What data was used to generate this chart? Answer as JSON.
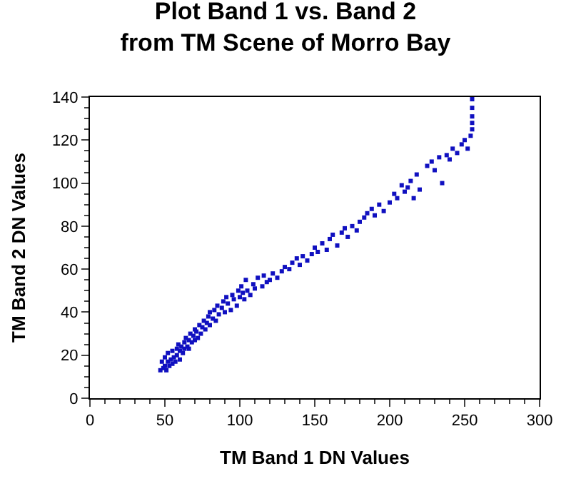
{
  "chart_data": {
    "type": "scatter",
    "title": "Plot Band 1 vs. Band 2\nfrom TM Scene of Morro Bay",
    "xlabel": "TM Band 1 DN Values",
    "ylabel": "TM Band 2 DN Values",
    "xlim": [
      0,
      300
    ],
    "xticks": [
      0,
      50,
      100,
      150,
      200,
      250,
      300
    ],
    "ylim": [
      0,
      140
    ],
    "yticks": [
      0,
      20,
      40,
      60,
      80,
      100,
      120,
      140
    ],
    "marker": "square",
    "series": [
      {
        "color": "#1010c0",
        "x": [
          47,
          48,
          49,
          50,
          50,
          51,
          52,
          52,
          53,
          54,
          55,
          55,
          56,
          57,
          58,
          58,
          59,
          60,
          60,
          61,
          62,
          63,
          63,
          64,
          65,
          66,
          66,
          67,
          68,
          69,
          70,
          70,
          71,
          72,
          73,
          74,
          75,
          76,
          77,
          78,
          79,
          80,
          80,
          82,
          83,
          84,
          85,
          86,
          88,
          89,
          90,
          91,
          92,
          94,
          95,
          96,
          98,
          99,
          100,
          101,
          102,
          103,
          104,
          105,
          107,
          109,
          110,
          112,
          115,
          116,
          118,
          120,
          122,
          125,
          128,
          130,
          133,
          135,
          138,
          140,
          142,
          145,
          148,
          150,
          152,
          155,
          158,
          160,
          162,
          165,
          168,
          170,
          172,
          175,
          178,
          180,
          183,
          185,
          188,
          190,
          193,
          196,
          200,
          203,
          205,
          208,
          210,
          212,
          214,
          216,
          218,
          220,
          225,
          228,
          230,
          233,
          235,
          238,
          240,
          242,
          245,
          248,
          250,
          252,
          254,
          255,
          255,
          255,
          255,
          255
        ],
        "values": [
          13,
          17,
          14,
          15,
          19,
          13,
          17,
          21,
          15,
          18,
          16,
          22,
          19,
          17,
          23,
          20,
          25,
          18,
          22,
          24,
          21,
          26,
          23,
          28,
          24,
          27,
          23,
          30,
          26,
          29,
          27,
          32,
          31,
          28,
          34,
          30,
          33,
          36,
          32,
          35,
          38,
          34,
          40,
          37,
          41,
          36,
          43,
          39,
          42,
          45,
          40,
          47,
          44,
          41,
          48,
          46,
          43,
          50,
          47,
          52,
          49,
          46,
          55,
          50,
          48,
          53,
          51,
          56,
          52,
          57,
          54,
          55,
          58,
          56,
          59,
          61,
          60,
          63,
          65,
          62,
          66,
          64,
          67,
          70,
          68,
          72,
          69,
          74,
          76,
          71,
          77,
          79,
          75,
          80,
          78,
          82,
          84,
          86,
          88,
          85,
          90,
          87,
          91,
          95,
          93,
          99,
          96,
          98,
          101,
          93,
          104,
          97,
          108,
          110,
          106,
          112,
          100,
          113,
          111,
          116,
          114,
          118,
          120,
          116,
          122,
          125,
          128,
          131,
          135,
          139
        ]
      }
    ]
  }
}
